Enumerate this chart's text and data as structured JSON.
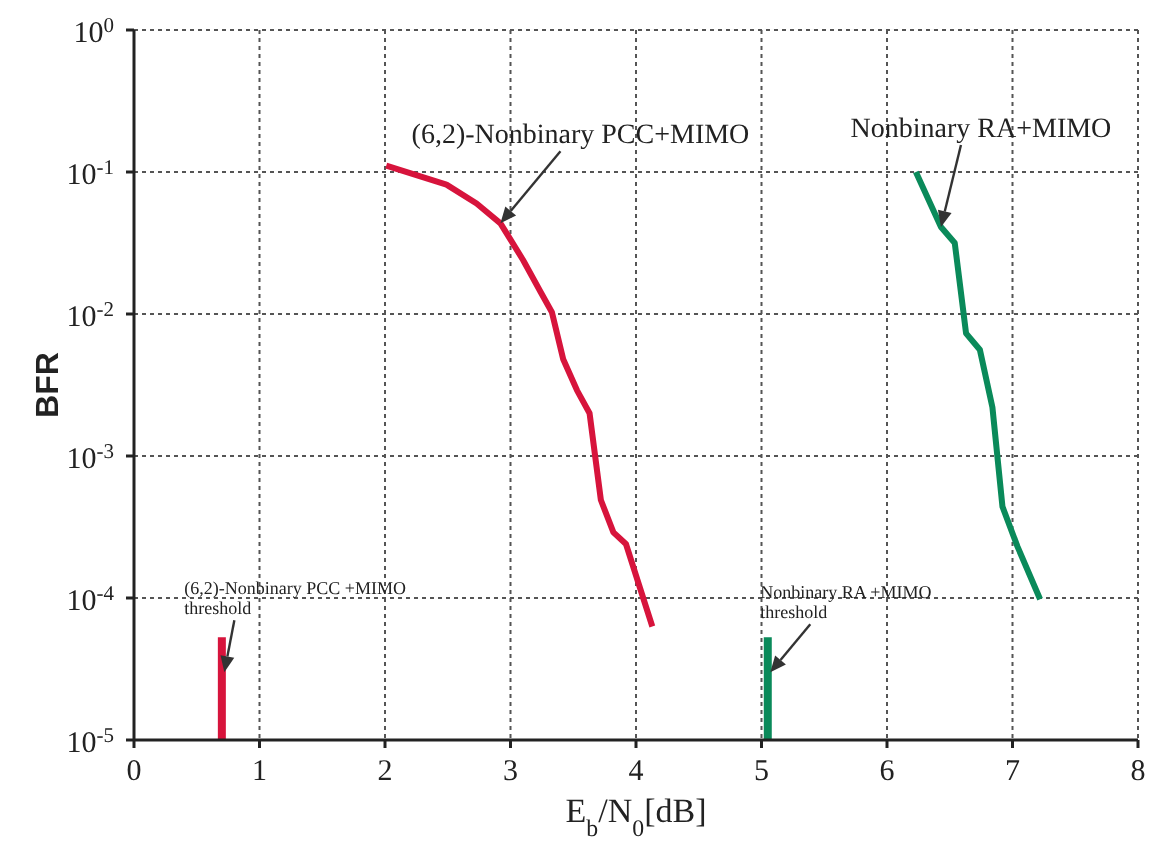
{
  "chart_data": {
    "type": "line",
    "xlabel": "E$_{b}$/N$_{0}$[dB]",
    "ylabel": "BFR",
    "log": "y",
    "grid": true,
    "legend": false,
    "xlim": [
      0,
      8
    ],
    "xticks": [
      0,
      1,
      2,
      3,
      4,
      5,
      6,
      7,
      8
    ],
    "ylim": [
      1e-05,
      1
    ],
    "yticks": [
      {
        "value": 1e-05,
        "label": "10$^{-5}$"
      },
      {
        "value": 0.0001,
        "label": "10$^{-4}$"
      },
      {
        "value": 0.001,
        "label": "10$^{-3}$"
      },
      {
        "value": 0.01,
        "label": "10$^{-2}$"
      },
      {
        "value": 0.1,
        "label": "10$^{-1}$"
      },
      {
        "value": 1,
        "label": "10$^{0}$"
      }
    ],
    "series": [
      {
        "color": "#d7143c",
        "x": [
          2.01,
          2.49,
          2.73,
          2.92,
          3.1,
          3.24,
          3.33,
          3.42,
          3.53,
          3.63,
          3.72,
          3.82,
          3.92,
          4.13
        ],
        "values": [
          0.111,
          0.0815,
          0.06,
          0.0435,
          0.024,
          0.0143,
          0.0103,
          0.0048,
          0.0029,
          0.002,
          0.00049,
          0.00029,
          0.00024,
          6.3e-05
        ]
      },
      {
        "color": "#0a8a5a",
        "x": [
          6.23,
          6.43,
          6.54,
          6.63,
          6.74,
          6.84,
          6.92,
          7.04,
          7.22
        ],
        "values": [
          0.1,
          0.041,
          0.0316,
          0.0073,
          0.0056,
          0.0022,
          0.00044,
          0.00023,
          9.8e-05
        ]
      },
      {
        "color": "#d7143c",
        "x": [
          0.7,
          0.7
        ],
        "values": [
          1e-05,
          5.3e-05
        ]
      },
      {
        "color": "#0a8a5a",
        "x": [
          5.05,
          5.05
        ],
        "values": [
          1e-05,
          5.3e-05
        ]
      }
    ],
    "annotations": [
      {
        "text": "(6,2)-Nonbinary PCC+MIMO",
        "x": 2.92,
        "y": 0.0435
      },
      {
        "text": "Nonbinary RA+MIMO",
        "x": 6.43,
        "y": 0.041
      },
      {
        "text": "(6,2)-Nonbinary PCC +MIMO\nthreshold",
        "x": 0.72,
        "y": 3e-05
      },
      {
        "text": "Nonbinary RA +MIMO\nthreshold",
        "x": 5.07,
        "y": 3e-05
      }
    ]
  }
}
